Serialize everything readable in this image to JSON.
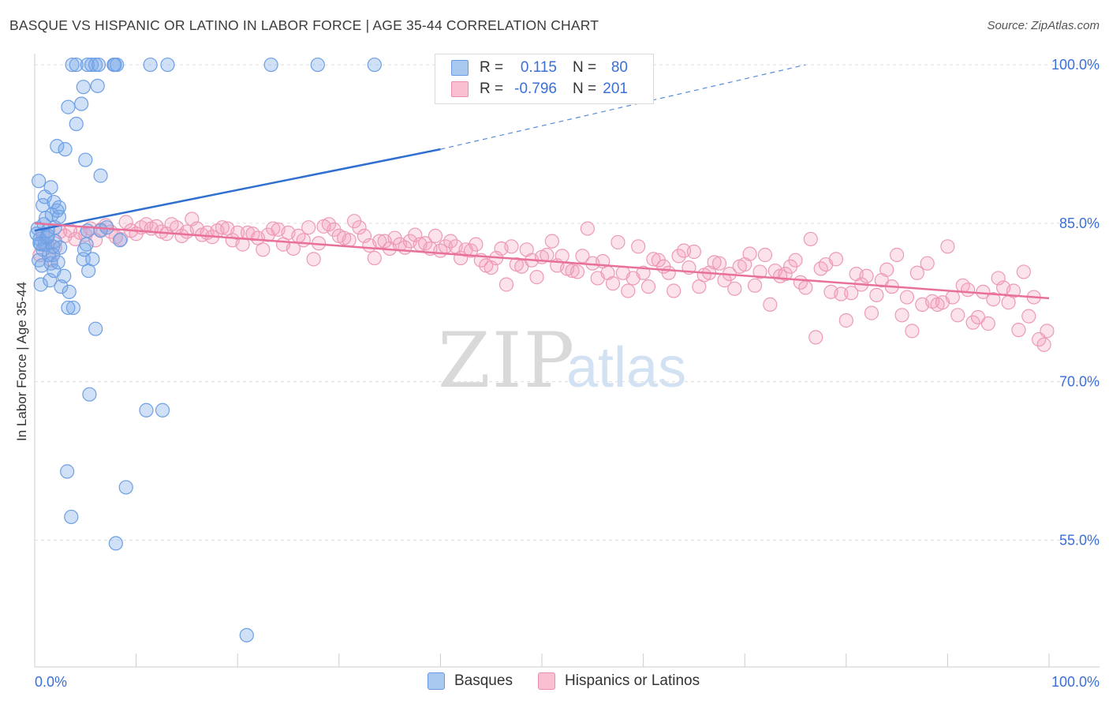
{
  "title": "BASQUE VS HISPANIC OR LATINO IN LABOR FORCE | AGE 35-44 CORRELATION CHART",
  "source": "Source: ZipAtlas.com",
  "watermark": {
    "zip": "ZIP",
    "atlas": "atlas"
  },
  "legend": {
    "rows": [
      {
        "r_label": "R =",
        "r_value": "0.115",
        "n_label": "N =",
        "n_value": "80",
        "fill": "#a8c8f0",
        "stroke": "#6a9be0"
      },
      {
        "r_label": "R =",
        "r_value": "-0.796",
        "n_label": "N =",
        "n_value": "201",
        "fill": "#f8c0d0",
        "stroke": "#e890ac"
      }
    ]
  },
  "bottom_legend": [
    {
      "label": "Basques",
      "fill": "#a8c8f0",
      "stroke": "#6a9be0"
    },
    {
      "label": "Hispanics or Latinos",
      "fill": "#f8c0d0",
      "stroke": "#e890ac"
    }
  ],
  "colors": {
    "basque_fill": "rgba(120,168,232,0.35)",
    "basque_stroke": "#6d9fe4",
    "basque_line": "#2f6fd0",
    "hispanic_fill": "rgba(244,160,190,0.30)",
    "hispanic_stroke": "#ec9ab6",
    "hispanic_line": "#e8709a",
    "grid": "#dddddd",
    "tick_label": "#3a6fd8"
  },
  "chart_data": {
    "type": "scatter",
    "title": "BASQUE VS HISPANIC OR LATINO IN LABOR FORCE | AGE 35-44 CORRELATION CHART",
    "xlabel": "",
    "ylabel": "In Labor Force | Age 35-44",
    "xlim": [
      0,
      100
    ],
    "ylim": [
      43,
      101.5
    ],
    "x_tick_labels": [
      {
        "value": 0,
        "label": "0.0%"
      },
      {
        "value": 100,
        "label": "100.0%"
      }
    ],
    "y_tick_labels": [
      {
        "value": 100,
        "label": "100.0%"
      },
      {
        "value": 85,
        "label": "85.0%"
      },
      {
        "value": 70,
        "label": "70.0%"
      },
      {
        "value": 55,
        "label": "55.0%"
      }
    ],
    "y_gridlines": [
      100,
      85,
      70,
      55
    ],
    "legend_position": "top-center",
    "series": [
      {
        "name": "Basques",
        "R": 0.115,
        "N": 80,
        "trend": {
          "x0": 0,
          "y0": 84.3,
          "x1": 40,
          "y1": 92.0,
          "dashed_to_x": 76,
          "dashed_to_y": 100.0
        },
        "points": [
          [
            0.3,
            84.5
          ],
          [
            0.5,
            83.5
          ],
          [
            0.6,
            83.0
          ],
          [
            0.8,
            82.5
          ],
          [
            0.4,
            81.5
          ],
          [
            0.7,
            81.0
          ],
          [
            1.0,
            83.0
          ],
          [
            1.2,
            83.6
          ],
          [
            1.4,
            82.0
          ],
          [
            1.6,
            81.2
          ],
          [
            1.8,
            82.8
          ],
          [
            2.0,
            83.3
          ],
          [
            0.9,
            84.9
          ],
          [
            1.1,
            85.5
          ],
          [
            1.3,
            84.3
          ],
          [
            1.7,
            85.8
          ],
          [
            2.2,
            86.2
          ],
          [
            2.4,
            85.6
          ],
          [
            0.6,
            79.2
          ],
          [
            1.5,
            79.6
          ],
          [
            2.6,
            79.0
          ],
          [
            3.4,
            78.5
          ],
          [
            3.8,
            77.0
          ],
          [
            1.9,
            80.5
          ],
          [
            2.9,
            80.0
          ],
          [
            4.8,
            81.6
          ],
          [
            5.7,
            81.6
          ],
          [
            4.9,
            82.5
          ],
          [
            5.1,
            83.0
          ],
          [
            5.3,
            80.5
          ],
          [
            0.2,
            84.0
          ],
          [
            1.8,
            82.0
          ],
          [
            2.3,
            81.3
          ],
          [
            0.8,
            86.7
          ],
          [
            1.0,
            87.5
          ],
          [
            1.6,
            88.4
          ],
          [
            1.9,
            87.0
          ],
          [
            2.4,
            86.5
          ],
          [
            0.4,
            89.0
          ],
          [
            2.2,
            92.3
          ],
          [
            3.0,
            92.0
          ],
          [
            5.0,
            91.0
          ],
          [
            6.5,
            89.5
          ],
          [
            3.3,
            96.0
          ],
          [
            4.6,
            96.3
          ],
          [
            4.1,
            94.4
          ],
          [
            4.8,
            97.9
          ],
          [
            6.2,
            98.0
          ],
          [
            3.7,
            100.0
          ],
          [
            4.1,
            100.0
          ],
          [
            5.2,
            100.0
          ],
          [
            5.6,
            100.0
          ],
          [
            6.0,
            100.0
          ],
          [
            6.3,
            100.0
          ],
          [
            7.8,
            100.0
          ],
          [
            7.9,
            100.0
          ],
          [
            8.1,
            100.0
          ],
          [
            11.4,
            100.0
          ],
          [
            13.1,
            100.0
          ],
          [
            23.3,
            100.0
          ],
          [
            27.9,
            100.0
          ],
          [
            33.5,
            100.0
          ],
          [
            5.2,
            84.3
          ],
          [
            6.5,
            84.3
          ],
          [
            7.1,
            84.6
          ],
          [
            8.4,
            83.4
          ],
          [
            3.3,
            77.0
          ],
          [
            6.0,
            75.0
          ],
          [
            5.4,
            68.8
          ],
          [
            11.0,
            67.3
          ],
          [
            12.6,
            67.3
          ],
          [
            3.2,
            61.5
          ],
          [
            3.6,
            57.2
          ],
          [
            9.0,
            60.0
          ],
          [
            8.0,
            54.7
          ],
          [
            20.9,
            46.0
          ],
          [
            2.5,
            82.7
          ],
          [
            2.0,
            84.6
          ],
          [
            0.5,
            83.1
          ],
          [
            1.3,
            83.8
          ]
        ]
      },
      {
        "name": "Hispanics or Latinos",
        "R": -0.796,
        "N": 201,
        "trend": {
          "x0": 0,
          "y0": 85.0,
          "x1": 100,
          "y1": 77.9
        },
        "points": [
          [
            0.5,
            82.0
          ],
          [
            0.8,
            84.0
          ],
          [
            1.2,
            83.0
          ],
          [
            1.6,
            81.5
          ],
          [
            2.0,
            82.7
          ],
          [
            2.5,
            84.2
          ],
          [
            3.0,
            83.8
          ],
          [
            3.5,
            84.3
          ],
          [
            4.0,
            83.5
          ],
          [
            4.5,
            84.1
          ],
          [
            5.0,
            83.9
          ],
          [
            5.5,
            84.5
          ],
          [
            6.0,
            83.4
          ],
          [
            6.5,
            84.4
          ],
          [
            7.0,
            84.8
          ],
          [
            7.5,
            84.2
          ],
          [
            8.0,
            83.7
          ],
          [
            8.5,
            83.5
          ],
          [
            9.0,
            85.1
          ],
          [
            9.5,
            84.3
          ],
          [
            10.0,
            84.0
          ],
          [
            10.5,
            84.6
          ],
          [
            11.0,
            84.9
          ],
          [
            11.5,
            84.5
          ],
          [
            12.0,
            84.7
          ],
          [
            12.5,
            84.2
          ],
          [
            13.0,
            84.0
          ],
          [
            13.5,
            84.9
          ],
          [
            14.0,
            84.6
          ],
          [
            14.5,
            83.8
          ],
          [
            15.0,
            84.2
          ],
          [
            15.5,
            85.4
          ],
          [
            16.0,
            84.5
          ],
          [
            16.5,
            83.9
          ],
          [
            17.0,
            84.1
          ],
          [
            17.5,
            83.7
          ],
          [
            18.0,
            84.3
          ],
          [
            18.5,
            84.6
          ],
          [
            19.0,
            84.5
          ],
          [
            19.5,
            83.4
          ],
          [
            20.0,
            84.1
          ],
          [
            20.5,
            83.0
          ],
          [
            21.0,
            84.1
          ],
          [
            21.5,
            84.0
          ],
          [
            22.0,
            83.6
          ],
          [
            22.5,
            82.5
          ],
          [
            23.0,
            83.9
          ],
          [
            23.5,
            84.5
          ],
          [
            24.0,
            84.4
          ],
          [
            24.5,
            83.0
          ],
          [
            25.0,
            84.1
          ],
          [
            25.5,
            82.6
          ],
          [
            26.0,
            83.8
          ],
          [
            26.5,
            83.4
          ],
          [
            27.0,
            84.6
          ],
          [
            27.5,
            81.6
          ],
          [
            28.0,
            83.1
          ],
          [
            28.5,
            84.7
          ],
          [
            29.0,
            84.9
          ],
          [
            29.5,
            84.4
          ],
          [
            30.0,
            83.8
          ],
          [
            30.5,
            83.6
          ],
          [
            31.0,
            83.4
          ],
          [
            31.5,
            85.2
          ],
          [
            32.0,
            84.6
          ],
          [
            32.5,
            83.8
          ],
          [
            33.0,
            82.9
          ],
          [
            33.5,
            81.7
          ],
          [
            34.0,
            83.3
          ],
          [
            34.5,
            83.3
          ],
          [
            35.0,
            82.6
          ],
          [
            35.5,
            83.6
          ],
          [
            36.0,
            83.0
          ],
          [
            36.5,
            82.7
          ],
          [
            37.0,
            83.3
          ],
          [
            37.5,
            83.9
          ],
          [
            38.0,
            83.0
          ],
          [
            38.5,
            83.1
          ],
          [
            39.0,
            82.6
          ],
          [
            39.5,
            83.8
          ],
          [
            40.0,
            82.4
          ],
          [
            40.5,
            82.8
          ],
          [
            41.0,
            83.3
          ],
          [
            41.5,
            82.8
          ],
          [
            42.0,
            81.7
          ],
          [
            42.5,
            82.5
          ],
          [
            43.0,
            82.4
          ],
          [
            43.5,
            83.0
          ],
          [
            44.0,
            81.5
          ],
          [
            44.5,
            81.0
          ],
          [
            45.0,
            80.8
          ],
          [
            45.5,
            81.7
          ],
          [
            46.0,
            82.6
          ],
          [
            46.5,
            79.2
          ],
          [
            47.0,
            82.8
          ],
          [
            47.5,
            81.1
          ],
          [
            48.0,
            80.9
          ],
          [
            48.5,
            82.5
          ],
          [
            49.0,
            81.5
          ],
          [
            49.5,
            79.9
          ],
          [
            50.0,
            81.8
          ],
          [
            50.5,
            82.0
          ],
          [
            51.0,
            83.3
          ],
          [
            51.5,
            81.0
          ],
          [
            52.0,
            81.9
          ],
          [
            52.5,
            80.7
          ],
          [
            53.0,
            80.5
          ],
          [
            53.5,
            80.4
          ],
          [
            54.0,
            81.9
          ],
          [
            54.5,
            84.5
          ],
          [
            55.0,
            81.2
          ],
          [
            55.5,
            79.8
          ],
          [
            56.0,
            81.4
          ],
          [
            56.5,
            80.3
          ],
          [
            57.0,
            79.3
          ],
          [
            57.5,
            83.2
          ],
          [
            58.0,
            80.3
          ],
          [
            58.5,
            78.6
          ],
          [
            59.0,
            79.8
          ],
          [
            59.5,
            82.8
          ],
          [
            60.0,
            80.3
          ],
          [
            60.5,
            79.0
          ],
          [
            61.0,
            81.6
          ],
          [
            61.5,
            81.5
          ],
          [
            62.0,
            80.9
          ],
          [
            62.5,
            80.3
          ],
          [
            63.0,
            78.6
          ],
          [
            63.5,
            81.9
          ],
          [
            64.0,
            82.4
          ],
          [
            64.5,
            80.8
          ],
          [
            65.0,
            82.3
          ],
          [
            65.5,
            79.0
          ],
          [
            66.0,
            80.1
          ],
          [
            66.5,
            80.3
          ],
          [
            67.0,
            81.3
          ],
          [
            67.5,
            81.2
          ],
          [
            68.0,
            79.6
          ],
          [
            68.5,
            80.2
          ],
          [
            69.0,
            78.8
          ],
          [
            69.5,
            80.9
          ],
          [
            70.0,
            81.1
          ],
          [
            70.5,
            82.1
          ],
          [
            71.0,
            79.1
          ],
          [
            71.5,
            80.4
          ],
          [
            72.0,
            82.0
          ],
          [
            72.5,
            77.3
          ],
          [
            73.0,
            80.5
          ],
          [
            73.5,
            80.0
          ],
          [
            74.0,
            80.2
          ],
          [
            74.5,
            80.9
          ],
          [
            75.0,
            81.5
          ],
          [
            75.5,
            79.4
          ],
          [
            76.0,
            78.9
          ],
          [
            76.5,
            83.5
          ],
          [
            77.0,
            74.2
          ],
          [
            77.5,
            80.7
          ],
          [
            78.0,
            81.1
          ],
          [
            78.5,
            78.5
          ],
          [
            79.0,
            81.6
          ],
          [
            79.5,
            78.3
          ],
          [
            80.0,
            75.8
          ],
          [
            80.5,
            78.4
          ],
          [
            81.0,
            80.2
          ],
          [
            81.5,
            79.2
          ],
          [
            82.0,
            80.0
          ],
          [
            82.5,
            76.5
          ],
          [
            83.0,
            78.2
          ],
          [
            83.5,
            79.6
          ],
          [
            84.0,
            80.6
          ],
          [
            84.5,
            79.0
          ],
          [
            85.0,
            82.0
          ],
          [
            85.5,
            76.3
          ],
          [
            86.0,
            78.0
          ],
          [
            86.5,
            74.8
          ],
          [
            87.0,
            80.3
          ],
          [
            87.5,
            77.3
          ],
          [
            88.0,
            81.2
          ],
          [
            88.5,
            77.6
          ],
          [
            89.0,
            77.3
          ],
          [
            89.5,
            77.5
          ],
          [
            90.0,
            82.8
          ],
          [
            90.5,
            78.0
          ],
          [
            91.0,
            76.3
          ],
          [
            91.5,
            79.1
          ],
          [
            92.0,
            78.7
          ],
          [
            92.5,
            75.6
          ],
          [
            93.0,
            76.1
          ],
          [
            93.5,
            78.5
          ],
          [
            94.0,
            75.5
          ],
          [
            94.5,
            77.8
          ],
          [
            95.0,
            79.8
          ],
          [
            95.5,
            78.9
          ],
          [
            96.0,
            77.5
          ],
          [
            96.5,
            78.6
          ],
          [
            97.0,
            74.9
          ],
          [
            97.5,
            80.4
          ],
          [
            98.0,
            76.2
          ],
          [
            98.5,
            78.0
          ],
          [
            99.0,
            74.0
          ],
          [
            99.5,
            73.5
          ],
          [
            99.8,
            74.8
          ]
        ]
      }
    ]
  }
}
